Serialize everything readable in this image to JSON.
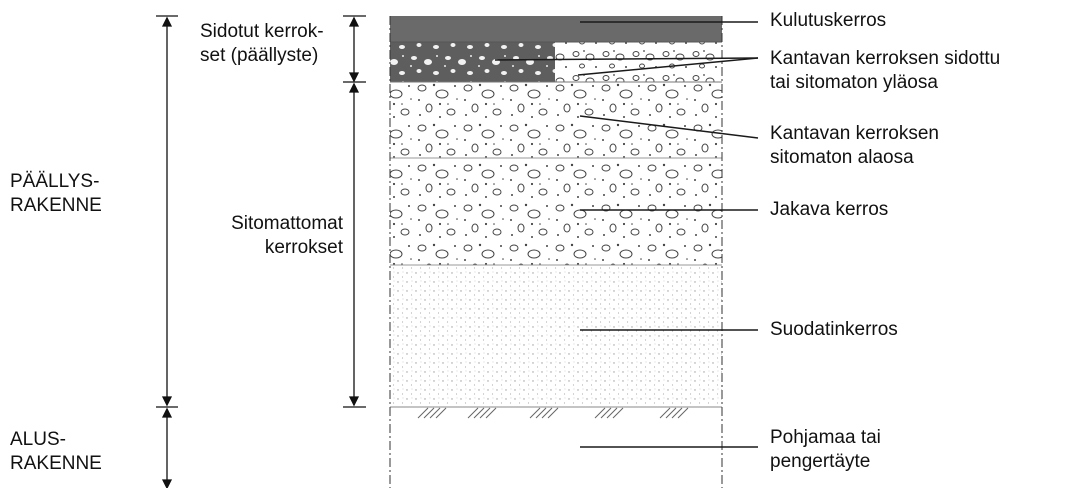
{
  "left_labels": {
    "paallysrakenne": [
      "PÄÄLLYS-",
      "RAKENNE"
    ],
    "alusrakenne": [
      "ALUS-",
      "RAKENNE"
    ]
  },
  "middle_labels": {
    "sidotut": [
      "Sidotut kerrok-",
      "set (päällyste)"
    ],
    "sitomattomat": [
      "Sitomattomat",
      "kerrokset"
    ]
  },
  "layers": {
    "kulutuskerros": [
      "Kulutuskerros"
    ],
    "kantava_ylaosa": [
      "Kantavan kerroksen sidottu",
      "tai sitomaton yläosa"
    ],
    "kantava_alaosa": [
      "Kantavan kerroksen",
      "sitomaton alaosa"
    ],
    "jakava": [
      "Jakava kerros"
    ],
    "suodatin": [
      "Suodatinkerros"
    ],
    "pohjamaa": [
      "Pohjamaa tai",
      "pengertäyte"
    ]
  },
  "colors": {
    "wearing_course": "#6a6a6a",
    "bound_base": "#5e5e5e",
    "line": "#222222"
  }
}
